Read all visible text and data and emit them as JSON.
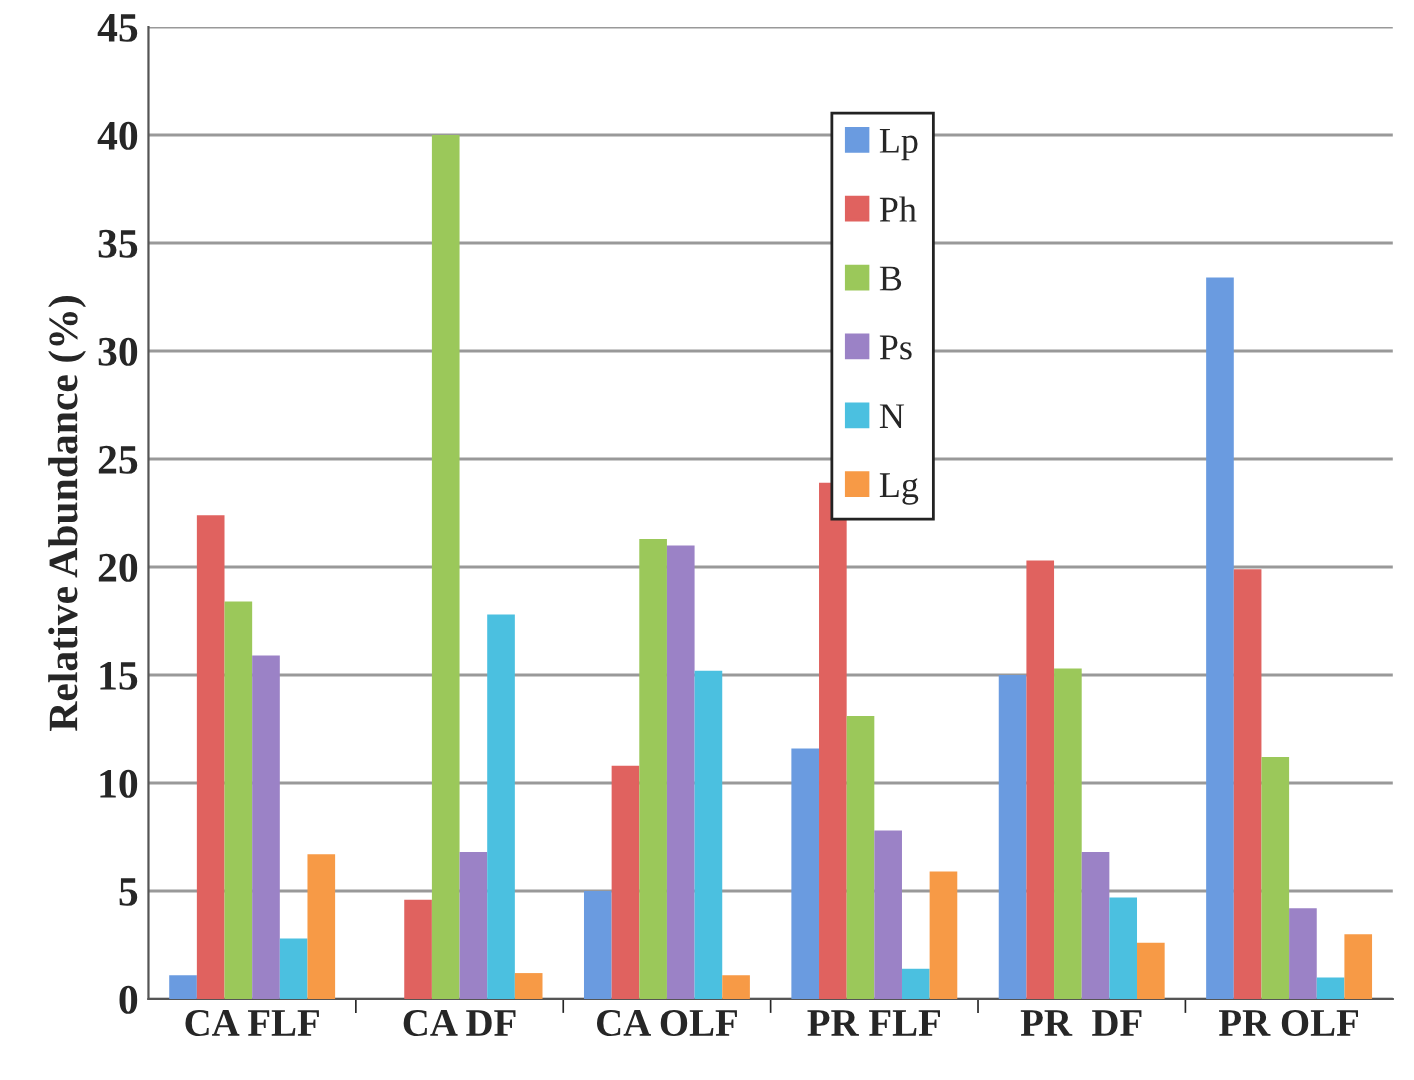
{
  "chart_data": {
    "type": "bar",
    "ylabel": "Relative Abundance (%)",
    "categories": [
      "CA FLF",
      "CA DF",
      "CA OLF",
      "PR FLF",
      "PR  DF",
      "PR OLF"
    ],
    "series": [
      {
        "name": "Lp",
        "color": "#6a9be0",
        "values": [
          1.1,
          null,
          5.0,
          11.6,
          15.0,
          33.4
        ]
      },
      {
        "name": "Ph",
        "color": "#e0625f",
        "values": [
          22.4,
          4.6,
          10.8,
          23.9,
          20.3,
          19.9
        ]
      },
      {
        "name": "B",
        "color": "#9bc85a",
        "values": [
          18.4,
          40,
          21.3,
          13.1,
          15.3,
          11.2
        ]
      },
      {
        "name": "Ps",
        "color": "#9b82c6",
        "values": [
          15.9,
          6.8,
          21.0,
          7.8,
          6.8,
          4.2
        ]
      },
      {
        "name": "N",
        "color": "#4bc0e0",
        "values": [
          2.8,
          17.8,
          15.2,
          1.4,
          4.7,
          1.0
        ]
      },
      {
        "name": "Lg",
        "color": "#f79a46",
        "values": [
          6.7,
          1.2,
          1.1,
          5.9,
          2.6,
          3.0
        ]
      }
    ],
    "ylim": [
      0,
      45
    ],
    "yticks": [
      0,
      5,
      10,
      15,
      20,
      25,
      30,
      35,
      40,
      45
    ],
    "grid": "y",
    "legend": "top"
  }
}
